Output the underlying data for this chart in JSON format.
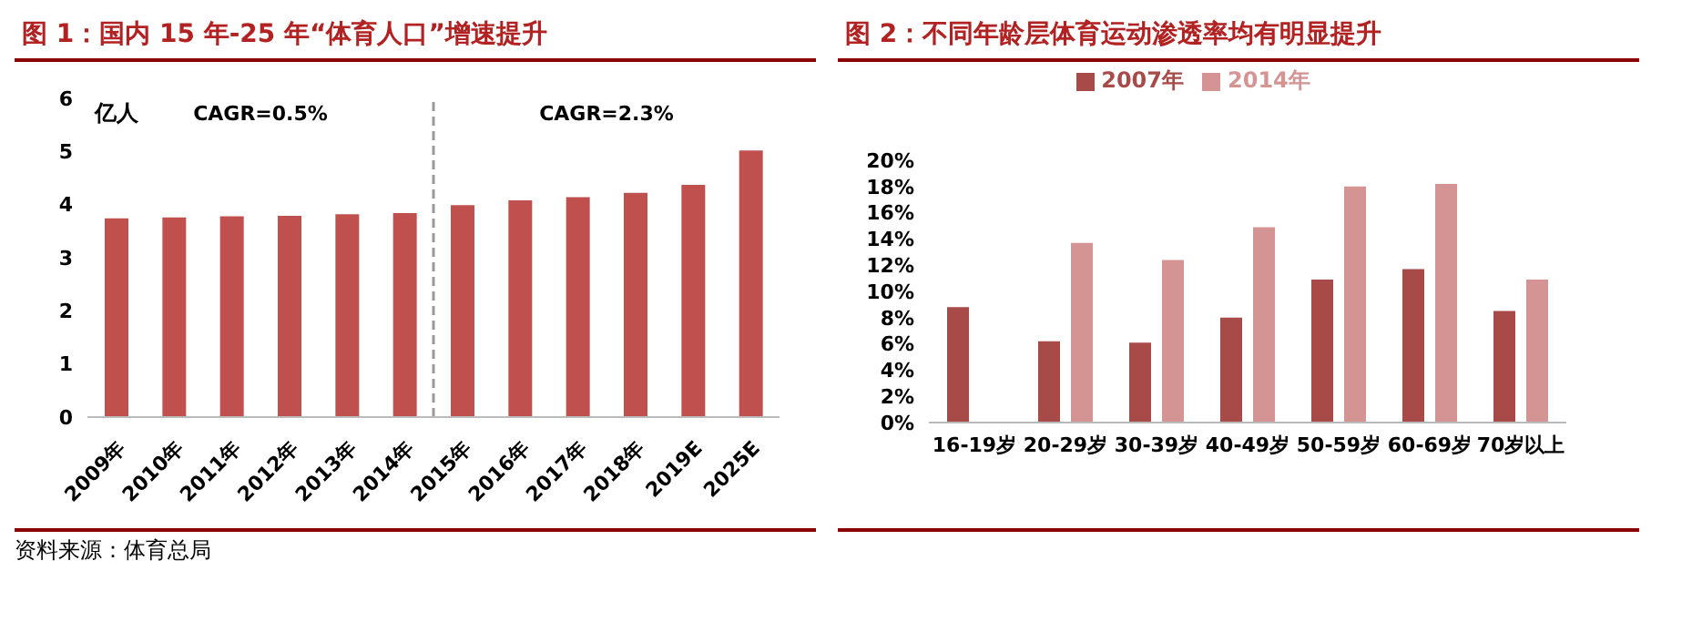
{
  "chart_data": [
    {
      "type": "bar",
      "title": "图 1：国内 15 年-25 年“体育人口”增速提升",
      "ylabel": "亿人",
      "categories": [
        "2009年",
        "2010年",
        "2011年",
        "2012年",
        "2013年",
        "2014年",
        "2015年",
        "2016年",
        "2017年",
        "2018年",
        "2019E",
        "2025E"
      ],
      "values": [
        3.74,
        3.76,
        3.78,
        3.79,
        3.82,
        3.84,
        3.99,
        4.08,
        4.14,
        4.22,
        4.37,
        5.02
      ],
      "color": "#c0504d",
      "ylim": [
        0,
        6
      ],
      "yticks": [
        0,
        1,
        2,
        3,
        4,
        5,
        6
      ],
      "grid": false,
      "legend": false,
      "ref_lines": [
        {
          "axis": "x",
          "value": "2015年",
          "line_style": "dashed",
          "color": "#999999"
        }
      ],
      "annotations": [
        "CAGR=0.5%",
        "CAGR=2.3%",
        "资料来源：体育总局"
      ]
    },
    {
      "type": "bar",
      "title": "图 2：不同年龄层体育运动渗透率均有明显提升",
      "categories": [
        "16-19岁",
        "20-29岁",
        "30-39岁",
        "40-49岁",
        "50-59岁",
        "60-69岁",
        "70岁以上"
      ],
      "series": [
        {
          "name": "2007年",
          "color": "#a84a48",
          "values": [
            8.8,
            6.2,
            6.1,
            8.0,
            10.9,
            11.7,
            8.5
          ]
        },
        {
          "name": "2014年",
          "color": "#d49493",
          "values": [
            null,
            13.7,
            12.4,
            14.9,
            18.0,
            18.2,
            10.9
          ]
        }
      ],
      "ylim": [
        0,
        20
      ],
      "yticks": [
        {
          "value": 0,
          "label": "0%"
        },
        {
          "value": 2,
          "label": "2%"
        },
        {
          "value": 4,
          "label": "4%"
        },
        {
          "value": 6,
          "label": "6%"
        },
        {
          "value": 8,
          "label": "8%"
        },
        {
          "value": 10,
          "label": "10%"
        },
        {
          "value": 12,
          "label": "12%"
        },
        {
          "value": 14,
          "label": "14%"
        },
        {
          "value": 16,
          "label": "16%"
        },
        {
          "value": 18,
          "label": "18%"
        },
        {
          "value": 20,
          "label": "20%"
        }
      ],
      "grid": false,
      "legend": "top"
    }
  ]
}
